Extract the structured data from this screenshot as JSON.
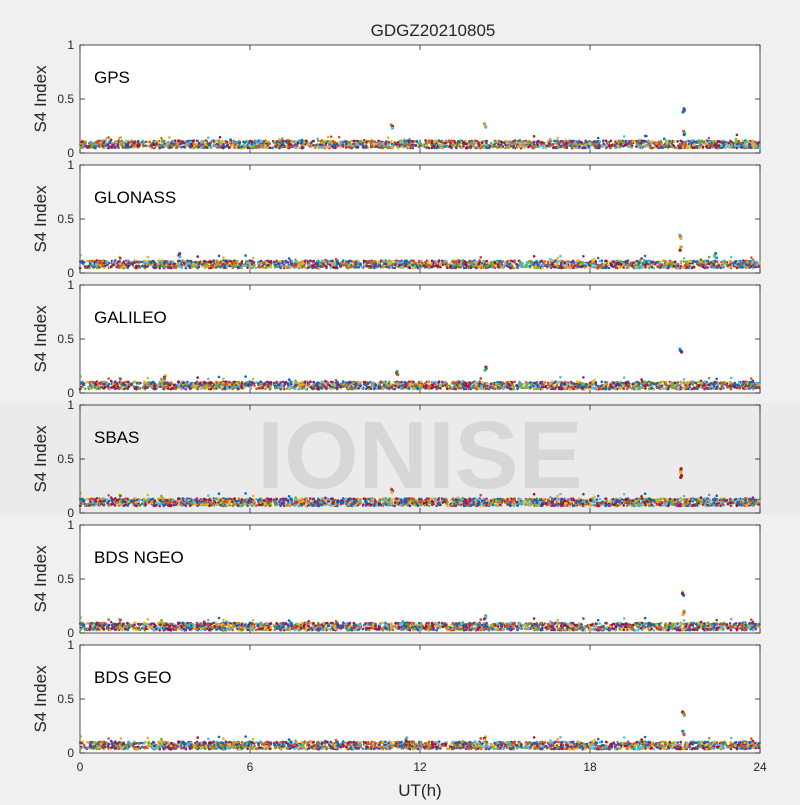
{
  "chart_data": {
    "type": "scatter",
    "title": "GDGZ20210805",
    "xlabel": "UT(h)",
    "ylabel": "S4 Index",
    "xlim": [
      0,
      24
    ],
    "ylim": [
      0,
      1
    ],
    "x_ticks": [
      0,
      6,
      12,
      18,
      24
    ],
    "y_ticks": [
      0,
      0.5,
      1
    ],
    "series_colors": [
      "#0072BD",
      "#D95319",
      "#EDB120",
      "#7E2F8E",
      "#77AC30",
      "#4DBEEE",
      "#A2142F"
    ],
    "watermark": "IONISE",
    "panels": [
      {
        "label": "GPS",
        "baseline": 0.08,
        "clusters": [
          {
            "x": 11.0,
            "y": 0.26
          },
          {
            "x": 14.3,
            "y": 0.27
          },
          {
            "x": 21.3,
            "y": 0.41
          },
          {
            "x": 21.3,
            "y": 0.2
          }
        ]
      },
      {
        "label": "GLONASS",
        "baseline": 0.08,
        "clusters": [
          {
            "x": 3.5,
            "y": 0.18
          },
          {
            "x": 21.2,
            "y": 0.35
          },
          {
            "x": 21.2,
            "y": 0.24
          },
          {
            "x": 22.4,
            "y": 0.18
          }
        ]
      },
      {
        "label": "GALILEO",
        "baseline": 0.07,
        "clusters": [
          {
            "x": 3.0,
            "y": 0.16
          },
          {
            "x": 11.2,
            "y": 0.2
          },
          {
            "x": 14.3,
            "y": 0.24
          },
          {
            "x": 21.2,
            "y": 0.41
          }
        ]
      },
      {
        "label": "SBAS",
        "baseline": 0.1,
        "clusters": [
          {
            "x": 11.0,
            "y": 0.22
          },
          {
            "x": 21.2,
            "y": 0.41
          },
          {
            "x": 21.2,
            "y": 0.36
          }
        ]
      },
      {
        "label": "BDS NGEO",
        "baseline": 0.06,
        "clusters": [
          {
            "x": 14.3,
            "y": 0.16
          },
          {
            "x": 21.3,
            "y": 0.38
          },
          {
            "x": 21.3,
            "y": 0.2
          }
        ]
      },
      {
        "label": "BDS GEO",
        "baseline": 0.07,
        "clusters": [
          {
            "x": 11.5,
            "y": 0.14
          },
          {
            "x": 14.3,
            "y": 0.15
          },
          {
            "x": 21.3,
            "y": 0.38
          },
          {
            "x": 21.3,
            "y": 0.2
          }
        ]
      }
    ]
  }
}
